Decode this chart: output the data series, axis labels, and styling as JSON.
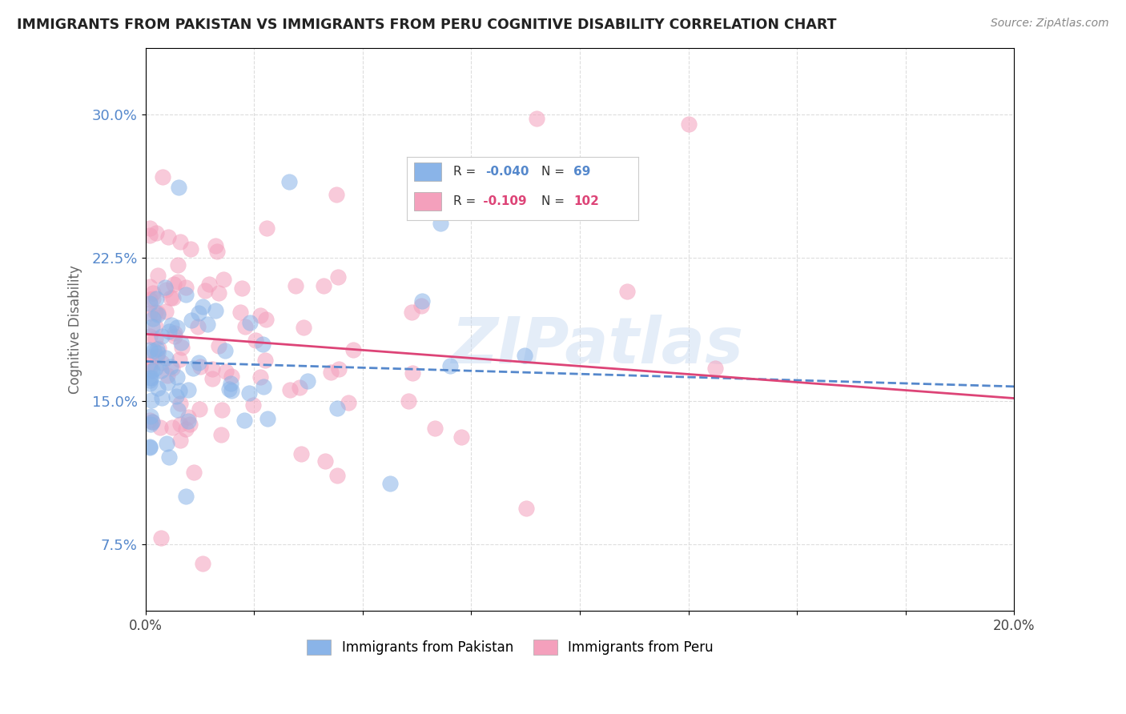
{
  "title": "IMMIGRANTS FROM PAKISTAN VS IMMIGRANTS FROM PERU COGNITIVE DISABILITY CORRELATION CHART",
  "source": "Source: ZipAtlas.com",
  "ylabel": "Cognitive Disability",
  "xlim": [
    0.0,
    0.2
  ],
  "ylim": [
    0.04,
    0.335
  ],
  "xticks": [
    0.0,
    0.025,
    0.05,
    0.075,
    0.1,
    0.125,
    0.15,
    0.175,
    0.2
  ],
  "xtick_labels_show": [
    "0.0%",
    "",
    "",
    "",
    "",
    "",
    "",
    "",
    "20.0%"
  ],
  "yticks": [
    0.075,
    0.15,
    0.225,
    0.3
  ],
  "ytick_labels": [
    "7.5%",
    "15.0%",
    "22.5%",
    "30.0%"
  ],
  "pakistan_color": "#8ab4e8",
  "peru_color": "#f4a0bc",
  "pakistan_line_color": "#5588cc",
  "peru_line_color": "#dd4477",
  "pakistan_R": -0.04,
  "pakistan_N": 69,
  "peru_R": -0.109,
  "peru_N": 102,
  "watermark": "ZIPatlas",
  "title_color": "#222222",
  "source_color": "#888888",
  "ylabel_color": "#666666",
  "ytick_color": "#5588cc",
  "grid_color": "#dddddd",
  "legend_box_color": "#eeeeee"
}
